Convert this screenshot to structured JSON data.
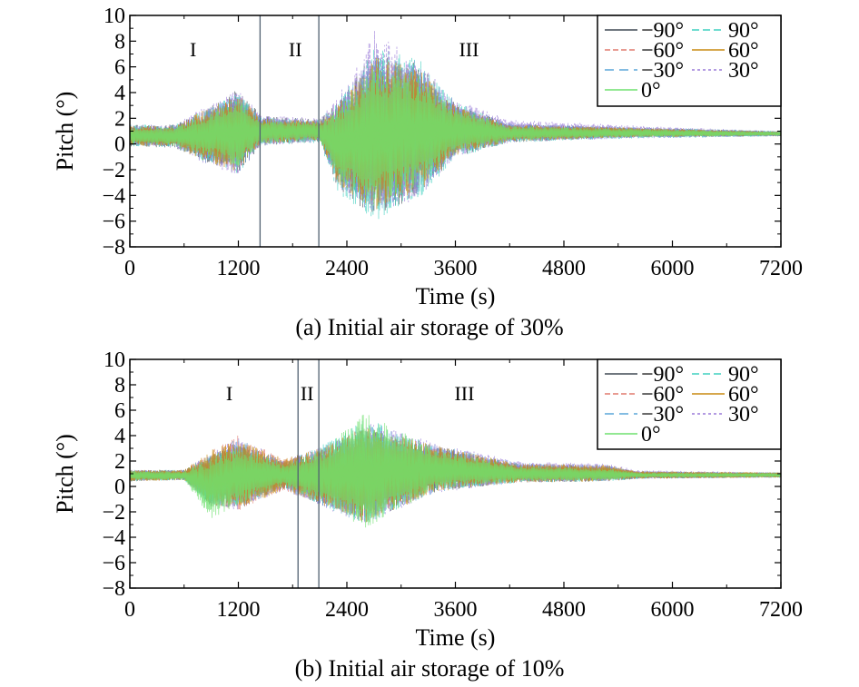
{
  "chart_data": [
    {
      "type": "line",
      "caption": "(a) Initial air storage of 30%",
      "xlabel": "Time (s)",
      "ylabel": "Pitch (°)",
      "xlim": [
        0,
        7200
      ],
      "ylim": [
        -8,
        10
      ],
      "xticks": [
        "0",
        "1200",
        "2400",
        "3600",
        "4800",
        "6000",
        "7200"
      ],
      "yticks": [
        "−8",
        "−6",
        "−4",
        "−2",
        "0",
        "2",
        "4",
        "6",
        "8",
        "10"
      ],
      "grid": false,
      "legend_position": "top-right",
      "phases": [
        {
          "label": "I",
          "x": 700
        },
        {
          "label": "II",
          "x": 1830
        },
        {
          "label": "III",
          "x": 3750
        }
      ],
      "phase_boundaries": [
        1440,
        2090
      ],
      "series": [
        {
          "name": "−90°",
          "color": "#404a55",
          "dash": "solid",
          "envelope": [
            [
              0,
              1.5,
              -0.2
            ],
            [
              500,
              1.5,
              -0.3
            ],
            [
              800,
              2.6,
              -1.3
            ],
            [
              1200,
              4.3,
              -2.4
            ],
            [
              1450,
              2.2,
              -0.2
            ],
            [
              2100,
              1.9,
              0.2
            ],
            [
              2300,
              3.3,
              -3.5
            ],
            [
              2700,
              7.2,
              -5.7
            ],
            [
              3200,
              6.2,
              -4.0
            ],
            [
              3600,
              3.2,
              -1.0
            ],
            [
              4200,
              1.6,
              0.1
            ],
            [
              5400,
              1.3,
              0.5
            ],
            [
              7200,
              1.0,
              0.6
            ]
          ]
        },
        {
          "name": "−60°",
          "color": "#e07a6e",
          "dash": "6,3",
          "envelope": [
            [
              0,
              1.4,
              -0.1
            ],
            [
              500,
              1.4,
              -0.2
            ],
            [
              800,
              2.4,
              -1.0
            ],
            [
              1200,
              4.0,
              -2.0
            ],
            [
              1450,
              2.0,
              0.0
            ],
            [
              2100,
              1.8,
              0.3
            ],
            [
              2300,
              3.0,
              -3.0
            ],
            [
              2700,
              6.6,
              -5.0
            ],
            [
              3200,
              5.6,
              -3.5
            ],
            [
              3600,
              3.0,
              -0.8
            ],
            [
              4200,
              1.5,
              0.2
            ],
            [
              5400,
              1.2,
              0.5
            ],
            [
              7200,
              0.95,
              0.65
            ]
          ]
        },
        {
          "name": "−30°",
          "color": "#5aa6d8",
          "dash": "10,6",
          "envelope": [
            [
              0,
              1.5,
              -0.1
            ],
            [
              500,
              1.4,
              -0.2
            ],
            [
              800,
              2.5,
              -1.1
            ],
            [
              1200,
              4.1,
              -2.2
            ],
            [
              1450,
              2.1,
              0.0
            ],
            [
              2100,
              1.8,
              0.2
            ],
            [
              2300,
              3.2,
              -3.2
            ],
            [
              2700,
              6.9,
              -5.3
            ],
            [
              3200,
              5.9,
              -3.8
            ],
            [
              3600,
              3.1,
              -0.9
            ],
            [
              4200,
              1.6,
              0.2
            ],
            [
              5400,
              1.4,
              0.4
            ],
            [
              7200,
              1.0,
              0.6
            ]
          ]
        },
        {
          "name": "0°",
          "color": "#6ee06e",
          "dash": "solid",
          "envelope": [
            [
              0,
              1.3,
              0.0
            ],
            [
              500,
              1.3,
              -0.1
            ],
            [
              800,
              2.2,
              -0.8
            ],
            [
              1200,
              3.6,
              -1.8
            ],
            [
              1450,
              1.8,
              0.1
            ],
            [
              2100,
              1.7,
              0.3
            ],
            [
              2300,
              2.8,
              -2.8
            ],
            [
              2700,
              6.2,
              -4.8
            ],
            [
              3200,
              5.2,
              -3.2
            ],
            [
              3600,
              2.8,
              -0.7
            ],
            [
              4200,
              1.4,
              0.3
            ],
            [
              5400,
              1.2,
              0.5
            ],
            [
              7200,
              0.95,
              0.65
            ]
          ]
        },
        {
          "name": "90°",
          "color": "#40d0c0",
          "dash": "8,4",
          "envelope": [
            [
              0,
              1.5,
              -0.2
            ],
            [
              500,
              1.5,
              -0.3
            ],
            [
              800,
              2.7,
              -1.4
            ],
            [
              1200,
              4.0,
              -2.3
            ],
            [
              1450,
              2.1,
              -0.1
            ],
            [
              2100,
              1.9,
              0.1
            ],
            [
              2300,
              3.6,
              -3.8
            ],
            [
              2700,
              7.6,
              -6.0
            ],
            [
              3200,
              6.6,
              -4.4
            ],
            [
              3600,
              3.3,
              -1.1
            ],
            [
              4200,
              1.6,
              0.1
            ],
            [
              5400,
              1.3,
              0.4
            ],
            [
              7200,
              1.0,
              0.6
            ]
          ]
        },
        {
          "name": "60°",
          "color": "#c88a10",
          "dash": "solid",
          "envelope": [
            [
              0,
              1.4,
              -0.1
            ],
            [
              500,
              1.4,
              -0.2
            ],
            [
              800,
              2.6,
              -1.3
            ],
            [
              1200,
              3.9,
              -2.2
            ],
            [
              1450,
              2.0,
              0.0
            ],
            [
              2100,
              1.8,
              0.3
            ],
            [
              2300,
              3.1,
              -3.1
            ],
            [
              2700,
              6.8,
              -5.2
            ],
            [
              3200,
              5.8,
              -3.6
            ],
            [
              3600,
              3.0,
              -0.9
            ],
            [
              4200,
              1.5,
              0.2
            ],
            [
              5400,
              1.3,
              0.5
            ],
            [
              7200,
              0.95,
              0.65
            ]
          ]
        },
        {
          "name": "30°",
          "color": "#9a7ad8",
          "dash": "3,3",
          "envelope": [
            [
              0,
              1.5,
              -0.2
            ],
            [
              500,
              1.5,
              -0.3
            ],
            [
              800,
              2.8,
              -1.5
            ],
            [
              1200,
              4.2,
              -2.5
            ],
            [
              1450,
              2.3,
              -0.1
            ],
            [
              2100,
              2.0,
              0.1
            ],
            [
              2300,
              3.7,
              -3.4
            ],
            [
              2700,
              8.9,
              -5.6
            ],
            [
              3200,
              6.4,
              -4.2
            ],
            [
              3600,
              3.5,
              -1.0
            ],
            [
              4200,
              1.9,
              0.1
            ],
            [
              5400,
              1.5,
              0.4
            ],
            [
              7200,
              1.0,
              0.6
            ]
          ]
        }
      ]
    },
    {
      "type": "line",
      "caption": "(b) Initial air storage of 10%",
      "xlabel": "Time (s)",
      "ylabel": "Pitch (°)",
      "xlim": [
        0,
        7200
      ],
      "ylim": [
        -8,
        10
      ],
      "xticks": [
        "0",
        "1200",
        "2400",
        "3600",
        "4800",
        "6000",
        "7200"
      ],
      "yticks": [
        "−8",
        "−6",
        "−4",
        "−2",
        "0",
        "2",
        "4",
        "6",
        "8",
        "10"
      ],
      "grid": false,
      "legend_position": "top-right",
      "phases": [
        {
          "label": "I",
          "x": 1100
        },
        {
          "label": "II",
          "x": 1960
        },
        {
          "label": "III",
          "x": 3700
        }
      ],
      "phase_boundaries": [
        1860,
        2090
      ],
      "series": [
        {
          "name": "−90°",
          "color": "#404a55",
          "dash": "solid",
          "envelope": [
            [
              0,
              1.3,
              0.4
            ],
            [
              600,
              1.3,
              0.5
            ],
            [
              900,
              2.6,
              -1.6
            ],
            [
              1200,
              3.4,
              -1.6
            ],
            [
              1700,
              2.0,
              -0.2
            ],
            [
              2100,
              3.0,
              -1.4
            ],
            [
              2600,
              4.6,
              -2.8
            ],
            [
              3400,
              3.2,
              -0.4
            ],
            [
              4300,
              1.8,
              0.3
            ],
            [
              5300,
              1.6,
              0.4
            ],
            [
              5600,
              1.2,
              0.6
            ],
            [
              7200,
              1.1,
              0.7
            ]
          ]
        },
        {
          "name": "−60°",
          "color": "#e07a6e",
          "dash": "6,3",
          "envelope": [
            [
              0,
              1.3,
              0.4
            ],
            [
              600,
              1.3,
              0.5
            ],
            [
              900,
              2.8,
              -1.4
            ],
            [
              1200,
              4.1,
              -1.9
            ],
            [
              1700,
              2.1,
              -0.3
            ],
            [
              2100,
              2.9,
              -1.3
            ],
            [
              2600,
              4.4,
              -2.6
            ],
            [
              3400,
              3.0,
              -0.3
            ],
            [
              4300,
              1.7,
              0.3
            ],
            [
              5300,
              1.5,
              0.5
            ],
            [
              5600,
              1.2,
              0.6
            ],
            [
              7200,
              1.1,
              0.7
            ]
          ]
        },
        {
          "name": "−30°",
          "color": "#5aa6d8",
          "dash": "10,6",
          "envelope": [
            [
              0,
              1.3,
              0.4
            ],
            [
              600,
              1.3,
              0.5
            ],
            [
              900,
              2.7,
              -1.5
            ],
            [
              1200,
              3.8,
              -1.7
            ],
            [
              1700,
              2.0,
              -0.2
            ],
            [
              2100,
              3.1,
              -1.5
            ],
            [
              2600,
              5.0,
              -3.0
            ],
            [
              3400,
              3.3,
              -0.5
            ],
            [
              4300,
              1.9,
              0.3
            ],
            [
              5300,
              1.7,
              0.4
            ],
            [
              5600,
              1.2,
              0.6
            ],
            [
              7200,
              1.1,
              0.7
            ]
          ]
        },
        {
          "name": "0°",
          "color": "#6ee06e",
          "dash": "solid",
          "envelope": [
            [
              0,
              1.2,
              0.5
            ],
            [
              600,
              1.2,
              0.5
            ],
            [
              900,
              2.4,
              -2.6
            ],
            [
              1200,
              3.2,
              -1.4
            ],
            [
              1700,
              1.8,
              0.0
            ],
            [
              2100,
              2.8,
              -1.2
            ],
            [
              2600,
              5.8,
              -3.3
            ],
            [
              3400,
              2.9,
              -0.2
            ],
            [
              4300,
              1.6,
              0.4
            ],
            [
              5300,
              1.4,
              0.5
            ],
            [
              5600,
              1.1,
              0.7
            ],
            [
              7200,
              1.05,
              0.75
            ]
          ]
        },
        {
          "name": "90°",
          "color": "#40d0c0",
          "dash": "8,4",
          "envelope": [
            [
              0,
              1.3,
              0.4
            ],
            [
              600,
              1.3,
              0.5
            ],
            [
              900,
              2.5,
              -1.7
            ],
            [
              1200,
              3.3,
              -1.5
            ],
            [
              1700,
              1.9,
              -0.1
            ],
            [
              2100,
              3.2,
              -1.5
            ],
            [
              2600,
              5.4,
              -3.1
            ],
            [
              3400,
              3.1,
              -0.3
            ],
            [
              4300,
              1.7,
              0.3
            ],
            [
              5300,
              1.6,
              0.4
            ],
            [
              5600,
              1.2,
              0.6
            ],
            [
              7200,
              1.1,
              0.7
            ]
          ]
        },
        {
          "name": "60°",
          "color": "#c88a10",
          "dash": "solid",
          "envelope": [
            [
              0,
              1.3,
              0.4
            ],
            [
              600,
              1.3,
              0.5
            ],
            [
              900,
              2.9,
              -1.5
            ],
            [
              1200,
              3.7,
              -1.8
            ],
            [
              1700,
              2.2,
              -0.3
            ],
            [
              2100,
              3.0,
              -1.4
            ],
            [
              2600,
              4.7,
              -2.9
            ],
            [
              3400,
              3.2,
              -0.4
            ],
            [
              4300,
              1.8,
              0.3
            ],
            [
              5300,
              1.7,
              0.4
            ],
            [
              5600,
              1.2,
              0.6
            ],
            [
              7200,
              1.1,
              0.7
            ]
          ]
        },
        {
          "name": "30°",
          "color": "#9a7ad8",
          "dash": "3,3",
          "envelope": [
            [
              0,
              1.3,
              0.4
            ],
            [
              600,
              1.3,
              0.5
            ],
            [
              900,
              2.7,
              -1.6
            ],
            [
              1200,
              3.9,
              -1.9
            ],
            [
              1700,
              2.1,
              -0.3
            ],
            [
              2100,
              3.1,
              -1.6
            ],
            [
              2600,
              5.1,
              -3.0
            ],
            [
              3400,
              3.4,
              -0.5
            ],
            [
              4300,
              2.0,
              0.3
            ],
            [
              5300,
              1.8,
              0.4
            ],
            [
              5600,
              1.3,
              0.6
            ],
            [
              7200,
              1.1,
              0.7
            ]
          ]
        }
      ]
    }
  ]
}
